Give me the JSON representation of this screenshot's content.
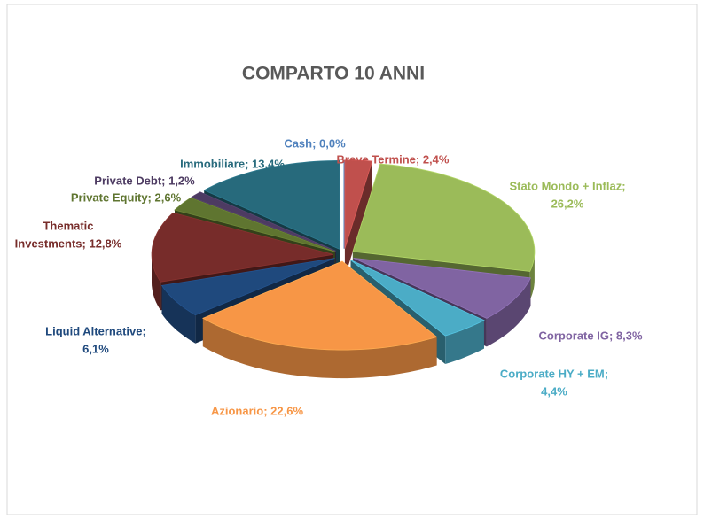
{
  "chart_data": {
    "type": "pie3d",
    "title": "COMPARTO 10 ANNI",
    "values": [
      0.0,
      2.4,
      26.2,
      8.3,
      4.4,
      22.6,
      6.1,
      12.8,
      2.6,
      1.2,
      13.4
    ],
    "value_labels": [
      [
        "Cash; 0,0%"
      ],
      [
        "Breve Termine; 2,4%"
      ],
      [
        "Stato Mondo + Inflaz;",
        "26,2%"
      ],
      [
        "Corporate IG; 8,3%"
      ],
      [
        "Corporate HY + EM;",
        "4,4%"
      ],
      [
        "Azionario; 22,6%"
      ],
      [
        "Liquid Alternative;",
        "6,1%"
      ],
      [
        "Thematic",
        "Investments; 12,8%"
      ],
      [
        "Private Equity; 2,6%"
      ],
      [
        "Private Debt; 1,2%"
      ],
      [
        "Immobiliare; 13,4%"
      ]
    ],
    "colors": [
      "#4f81bd",
      "#c0504d",
      "#9bbb59",
      "#8064a2",
      "#4bacc6",
      "#f79646",
      "#1f497d",
      "#772c2a",
      "#5f7530",
      "#4d3b62",
      "#276a7c"
    ]
  }
}
